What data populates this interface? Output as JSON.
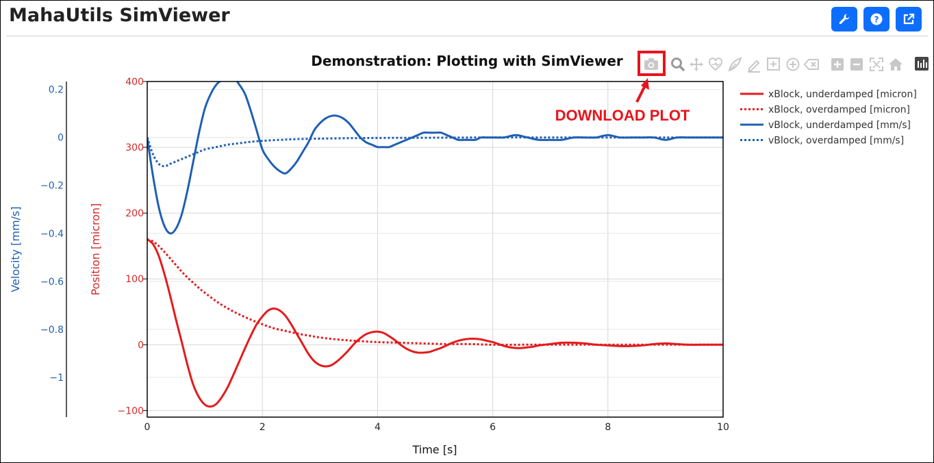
{
  "app": {
    "title": "MahaUtils SimViewer",
    "header_buttons": [
      {
        "name": "settings-button",
        "icon": "wrench-icon"
      },
      {
        "name": "help-button",
        "icon": "question-icon"
      },
      {
        "name": "open-external-button",
        "icon": "external-link-icon"
      }
    ],
    "accent_color": "#0d6efd"
  },
  "modebar": {
    "buttons": [
      "camera-icon",
      "zoom-icon",
      "pan-icon",
      "lasso-select-icon",
      "draw-closed-icon",
      "draw-line-icon",
      "draw-rect-icon",
      "draw-circle-icon",
      "erase-shape-icon",
      "zoom-in-icon",
      "zoom-out-icon",
      "autoscale-icon",
      "reset-axes-icon",
      "plotly-logo-icon"
    ]
  },
  "annotation": {
    "text": "DOWNLOAD PLOT",
    "color": "#e8141b"
  },
  "chart_data": {
    "type": "line",
    "title": "Demonstration: Plotting with SimViewer",
    "xlabel": "Time [s]",
    "xlim": [
      0,
      10
    ],
    "xticks": [
      0,
      2,
      4,
      6,
      8,
      10
    ],
    "y_position": {
      "label": "Position [micron]",
      "color": "#d62728",
      "ylim": [
        -110,
        400
      ],
      "ticks": [
        -100,
        0,
        100,
        200,
        300,
        400
      ]
    },
    "y_velocity": {
      "label": "Velocity [mm/s]",
      "color": "#1f5fb4",
      "ylim": [
        -1.166,
        0.2333
      ],
      "ticks": [
        -1,
        -0.8,
        -0.6,
        -0.4,
        -0.2,
        0,
        0.2
      ],
      "tick_labels": [
        "−1",
        "−0.8",
        "−0.6",
        "−0.4",
        "−0.2",
        "0",
        "0.2"
      ]
    },
    "grid": true,
    "legend_position": "top-right",
    "series": [
      {
        "name": "xBlock, underdamped [micron]",
        "axis": "position",
        "color": "#e41a1c",
        "dash": "solid",
        "x": [
          0,
          0.1,
          0.2,
          0.3,
          0.4,
          0.5,
          0.6,
          0.7,
          0.8,
          0.9,
          1.0,
          1.1,
          1.2,
          1.3,
          1.4,
          1.5,
          1.6,
          1.7,
          1.8,
          1.9,
          2.0,
          2.1,
          2.2,
          2.3,
          2.4,
          2.5,
          2.6,
          2.7,
          2.8,
          2.9,
          3.0,
          3.1,
          3.2,
          3.3,
          3.4,
          3.5,
          3.6,
          3.7,
          3.8,
          3.9,
          4.0,
          4.1,
          4.2,
          4.3,
          4.4,
          4.5,
          4.6,
          4.7,
          4.8,
          4.9,
          5.0,
          5.1,
          5.2,
          5.3,
          5.4,
          5.5,
          5.6,
          5.7,
          5.8,
          5.9,
          6.0,
          6.1,
          6.2,
          6.3,
          6.4,
          6.5,
          6.6,
          6.7,
          6.8,
          6.9,
          7.0,
          7.2,
          7.4,
          7.6,
          7.8,
          8.0,
          8.2,
          8.4,
          8.6,
          8.8,
          9.0,
          9.2,
          9.4,
          9.6,
          9.8,
          10.0
        ],
        "y": [
          160,
          153,
          135,
          107,
          74,
          38,
          4,
          -31,
          -61,
          -80,
          -91,
          -94,
          -90,
          -79,
          -64,
          -45,
          -25,
          -5,
          14,
          31,
          43,
          52,
          55,
          52,
          44,
          31,
          16,
          1,
          -14,
          -25,
          -31,
          -33,
          -31,
          -25,
          -17,
          -8,
          2,
          10,
          16,
          19,
          20,
          18,
          13,
          7,
          0,
          -6,
          -10,
          -12,
          -12,
          -11,
          -8,
          -5,
          -1,
          3,
          6,
          8,
          9,
          9,
          8,
          6,
          4,
          1,
          -2,
          -4,
          -5,
          -5,
          -4,
          -3,
          -1,
          0,
          1,
          3,
          3,
          2,
          0,
          -1,
          -2,
          -2,
          -1,
          1,
          2,
          1,
          0,
          0,
          0,
          0
        ]
      },
      {
        "name": "xBlock, overdamped [micron]",
        "axis": "position",
        "color": "#e41a1c",
        "dash": "dot",
        "x": [
          0,
          0.1,
          0.2,
          0.3,
          0.4,
          0.5,
          0.6,
          0.7,
          0.8,
          0.9,
          1.0,
          1.2,
          1.4,
          1.6,
          1.8,
          2.0,
          2.2,
          2.4,
          2.6,
          2.8,
          3.0,
          3.3,
          3.6,
          4.0,
          4.4,
          4.8,
          5.2,
          5.6,
          6.0,
          6.5,
          7.0,
          8.0,
          9.0,
          10.0
        ],
        "y": [
          160,
          157,
          150,
          141,
          131,
          121,
          111,
          102,
          94,
          86,
          79,
          66,
          55,
          46,
          38,
          31,
          25,
          21,
          17,
          14,
          11,
          8,
          6,
          4,
          3,
          2,
          1,
          1,
          0,
          0,
          0,
          0,
          0,
          0
        ]
      },
      {
        "name": "vBlock, underdamped [mm/s]",
        "axis": "velocity",
        "color": "#1f5fb4",
        "dash": "solid",
        "x": [
          0,
          0.1,
          0.2,
          0.3,
          0.4,
          0.5,
          0.6,
          0.7,
          0.8,
          0.9,
          1.0,
          1.1,
          1.2,
          1.3,
          1.4,
          1.5,
          1.6,
          1.7,
          1.8,
          1.9,
          2.0,
          2.1,
          2.2,
          2.3,
          2.4,
          2.5,
          2.6,
          2.7,
          2.8,
          2.9,
          3.0,
          3.1,
          3.2,
          3.3,
          3.4,
          3.5,
          3.6,
          3.7,
          3.8,
          3.9,
          4.0,
          4.1,
          4.2,
          4.3,
          4.4,
          4.5,
          4.6,
          4.7,
          4.8,
          4.9,
          5.0,
          5.1,
          5.2,
          5.3,
          5.4,
          5.5,
          5.6,
          5.7,
          5.8,
          5.9,
          6.0,
          6.2,
          6.4,
          6.6,
          6.8,
          7.0,
          7.2,
          7.4,
          7.6,
          7.8,
          8.0,
          8.2,
          8.4,
          8.6,
          8.8,
          9.0,
          9.2,
          9.4,
          9.6,
          9.8,
          10.0
        ],
        "y": [
          0,
          -0.16,
          -0.29,
          -0.37,
          -0.4,
          -0.38,
          -0.32,
          -0.22,
          -0.1,
          0.02,
          0.12,
          0.18,
          0.22,
          0.24,
          0.25,
          0.25,
          0.22,
          0.18,
          0.11,
          0.03,
          -0.05,
          -0.09,
          -0.12,
          -0.14,
          -0.15,
          -0.13,
          -0.1,
          -0.06,
          -0.02,
          0.03,
          0.06,
          0.08,
          0.09,
          0.09,
          0.08,
          0.06,
          0.03,
          0.0,
          -0.02,
          -0.03,
          -0.04,
          -0.04,
          -0.04,
          -0.03,
          -0.02,
          -0.01,
          0.0,
          0.01,
          0.02,
          0.02,
          0.02,
          0.02,
          0.01,
          0.0,
          -0.01,
          -0.01,
          -0.01,
          -0.01,
          0.0,
          0.0,
          0.0,
          0.0,
          0.01,
          0.0,
          -0.01,
          -0.01,
          -0.01,
          0.0,
          0.0,
          0.0,
          0.01,
          0.0,
          0.0,
          0.0,
          0.0,
          -0.01,
          0.0,
          0.0,
          0.0,
          0.0,
          0.0
        ]
      },
      {
        "name": "vBlock, overdamped [mm/s]",
        "axis": "velocity",
        "color": "#1f5fb4",
        "dash": "dot",
        "x": [
          0,
          0.1,
          0.2,
          0.3,
          0.4,
          0.5,
          0.6,
          0.7,
          0.8,
          0.9,
          1.0,
          1.2,
          1.4,
          1.6,
          1.8,
          2.0,
          2.3,
          2.6,
          3.0,
          3.5,
          4.0,
          5.0,
          6.0,
          7.0,
          8.0,
          9.0,
          10.0
        ],
        "y": [
          0,
          -0.07,
          -0.11,
          -0.12,
          -0.11,
          -0.1,
          -0.09,
          -0.08,
          -0.07,
          -0.06,
          -0.05,
          -0.04,
          -0.03,
          -0.024,
          -0.018,
          -0.014,
          -0.01,
          -0.007,
          -0.005,
          -0.003,
          -0.002,
          -0.001,
          0,
          0,
          0,
          0,
          0
        ]
      }
    ]
  }
}
